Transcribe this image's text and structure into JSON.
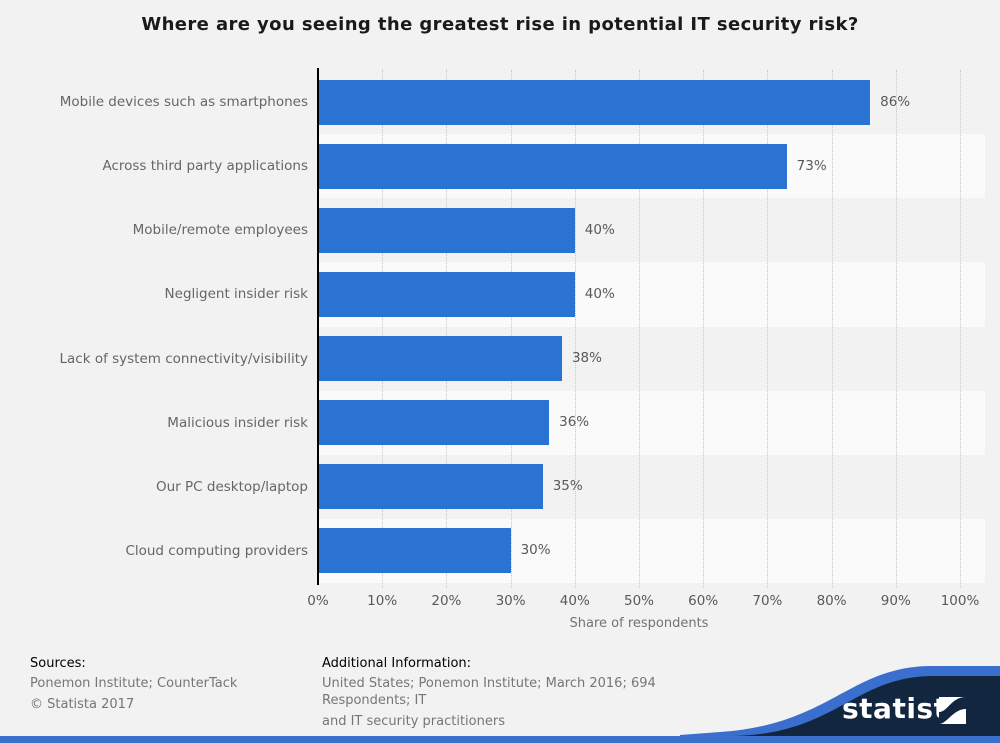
{
  "chart_data": {
    "type": "bar",
    "orientation": "horizontal",
    "title": "Where are you seeing the greatest rise in potential IT security risk?",
    "categories": [
      "Mobile devices such as smartphones",
      "Across third party applications",
      "Mobile/remote employees",
      "Negligent insider risk",
      "Lack of system connectivity/visibility",
      "Malicious insider risk",
      "Our PC desktop/laptop",
      "Cloud computing providers"
    ],
    "values": [
      86,
      73,
      40,
      40,
      38,
      36,
      35,
      30
    ],
    "value_suffix": "%",
    "xlabel": "Share of respondents",
    "xlim": [
      0,
      100
    ],
    "xticks": [
      0,
      10,
      20,
      30,
      40,
      50,
      60,
      70,
      80,
      90,
      100
    ],
    "xtick_suffix": "%",
    "grid": "vertical-dotted",
    "legend": "none"
  },
  "footer": {
    "sources": {
      "label": "Sources:",
      "lines": [
        "Ponemon Institute; CounterTack",
        "© Statista 2017"
      ]
    },
    "additional": {
      "label": "Additional Information:",
      "lines": [
        "United States; Ponemon Institute; March 2016; 694 Respondents; IT",
        "and IT security practitioners"
      ]
    }
  },
  "branding": {
    "logo_text": "statista"
  },
  "colors": {
    "background": "#f2f2f2",
    "row_band": "#fafafa",
    "bar": "#2b73d2",
    "navy": "#13263f",
    "blue": "#3b6fce",
    "text_grey": "#666666"
  }
}
